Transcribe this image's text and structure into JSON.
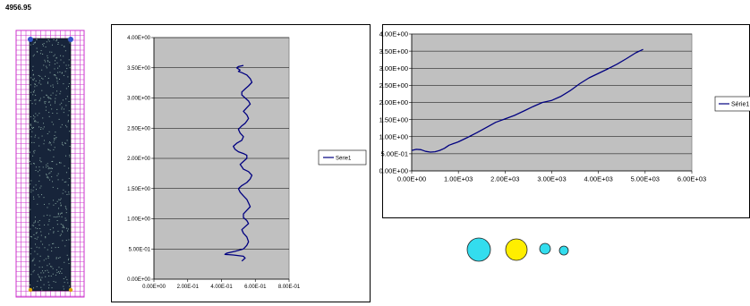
{
  "readout": {
    "value": "4956.95"
  },
  "simulation": {
    "grid_color": "#cc33cc",
    "column_color": "#17243a",
    "grain_color": "#88a8a0",
    "marker_colors": {
      "top": "#3355cc",
      "bottom": "#d9a400"
    }
  },
  "colors": {
    "plot_area": "#c0c0c0",
    "series_line": "#000080",
    "gridline": "#000000"
  },
  "chart_data": [
    {
      "type": "line",
      "legend": [
        "Série1"
      ],
      "legend_position": "right",
      "grid": true,
      "xlim": [
        0,
        0.8
      ],
      "ylim": [
        0,
        4.0
      ],
      "x_ticks": [
        "0.00E+00",
        "2.00E-01",
        "4.00E-01",
        "6.00E-01",
        "8.00E-01"
      ],
      "y_ticks": [
        "0.00E+00",
        "5.00E-01",
        "1.00E+00",
        "1.50E+00",
        "2.00E+00",
        "2.50E+00",
        "3.00E+00",
        "3.50E+00",
        "4.00E+00"
      ],
      "series": [
        {
          "name": "Série1",
          "x": [
            0.52,
            0.54,
            0.53,
            0.47,
            0.42,
            0.43,
            0.48,
            0.53,
            0.55,
            0.56,
            0.55,
            0.53,
            0.52,
            0.54,
            0.56,
            0.55,
            0.53,
            0.53,
            0.55,
            0.57,
            0.56,
            0.55,
            0.53,
            0.51,
            0.5,
            0.52,
            0.55,
            0.57,
            0.58,
            0.56,
            0.53,
            0.52,
            0.51,
            0.53,
            0.55,
            0.55,
            0.53,
            0.5,
            0.48,
            0.47,
            0.49,
            0.52,
            0.53,
            0.51,
            0.5,
            0.52,
            0.54,
            0.55,
            0.56,
            0.55,
            0.53,
            0.55,
            0.57,
            0.56,
            0.54,
            0.52,
            0.52,
            0.54,
            0.56,
            0.58,
            0.57,
            0.55,
            0.52,
            0.5,
            0.51,
            0.49,
            0.5,
            0.53
          ],
          "y": [
            0.3,
            0.35,
            0.38,
            0.4,
            0.41,
            0.43,
            0.46,
            0.5,
            0.56,
            0.62,
            0.7,
            0.76,
            0.82,
            0.87,
            0.92,
            0.97,
            1.02,
            1.08,
            1.14,
            1.2,
            1.26,
            1.32,
            1.38,
            1.44,
            1.5,
            1.55,
            1.6,
            1.66,
            1.72,
            1.78,
            1.82,
            1.86,
            1.9,
            1.95,
            2.0,
            2.05,
            2.08,
            2.11,
            2.15,
            2.2,
            2.25,
            2.3,
            2.36,
            2.42,
            2.48,
            2.54,
            2.58,
            2.62,
            2.66,
            2.72,
            2.78,
            2.84,
            2.9,
            2.95,
            3.0,
            3.05,
            3.1,
            3.15,
            3.2,
            3.26,
            3.32,
            3.38,
            3.42,
            3.44,
            3.46,
            3.5,
            3.52,
            3.54
          ]
        }
      ]
    },
    {
      "type": "line",
      "legend": [
        "Série1"
      ],
      "legend_position": "right",
      "grid": true,
      "xlim": [
        0,
        6000
      ],
      "ylim": [
        0,
        4.0
      ],
      "x_ticks": [
        "0.00E+00",
        "1.00E+03",
        "2.00E+03",
        "3.00E+03",
        "4.00E+03",
        "5.00E+03",
        "6.00E+03"
      ],
      "y_ticks": [
        "0.00E+00",
        "5.00E-01",
        "1.00E+00",
        "1.50E+00",
        "2.00E+00",
        "2.50E+00",
        "3.00E+00",
        "3.50E+00",
        "4.00E+00"
      ],
      "series": [
        {
          "name": "Série1",
          "x": [
            0,
            100,
            200,
            300,
            400,
            500,
            600,
            700,
            800,
            900,
            1000,
            1200,
            1400,
            1600,
            1800,
            2000,
            2200,
            2400,
            2600,
            2800,
            3000,
            3200,
            3400,
            3600,
            3800,
            4000,
            4200,
            4400,
            4600,
            4800,
            4957
          ],
          "y": [
            0.6,
            0.63,
            0.62,
            0.57,
            0.55,
            0.56,
            0.6,
            0.66,
            0.75,
            0.8,
            0.85,
            0.98,
            1.12,
            1.27,
            1.42,
            1.52,
            1.62,
            1.75,
            1.88,
            2.0,
            2.06,
            2.18,
            2.35,
            2.55,
            2.72,
            2.85,
            2.98,
            3.12,
            3.28,
            3.45,
            3.55
          ]
        }
      ]
    }
  ],
  "particles": {
    "items": [
      {
        "color": "#33ddee"
      },
      {
        "color": "#ffee00"
      },
      {
        "color": "#33ddee"
      },
      {
        "color": "#33ddee"
      }
    ]
  }
}
